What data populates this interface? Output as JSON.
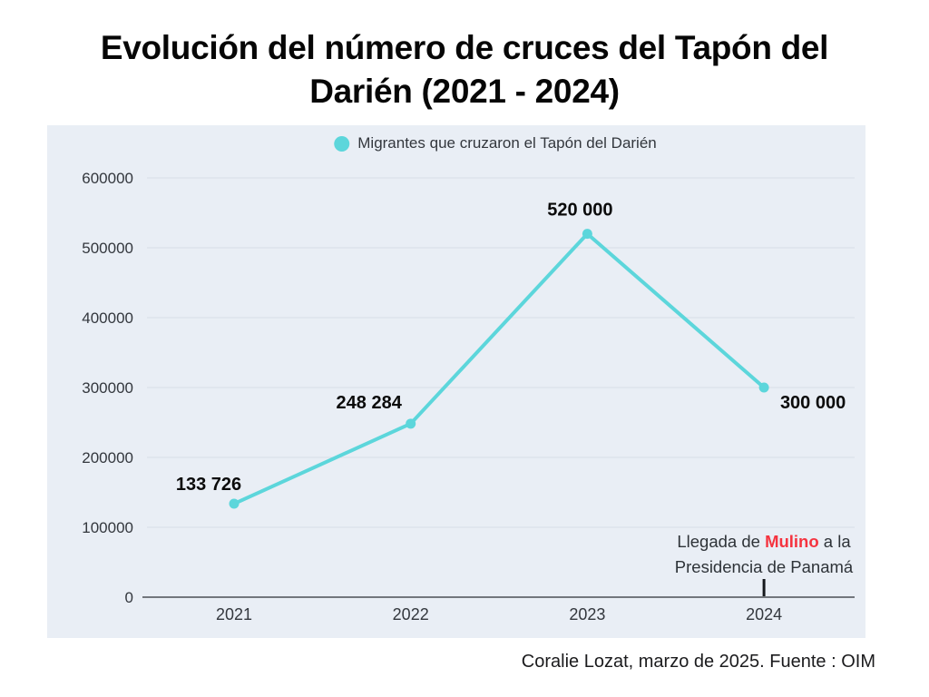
{
  "title": "Evolución del número de cruces del Tapón del Darién (2021 - 2024)",
  "legend": {
    "label": "Migrantes que cruzaron el Tapón del Darién"
  },
  "annotation": {
    "pre": "Llegada de ",
    "highlight": "Mulino",
    "post": " a la",
    "line2": "Presidencia de Panamá"
  },
  "footer": {
    "credit": "Coralie Lozat, marzo de 2025. Fuente : OIM"
  },
  "colors": {
    "series": "#5cd6db",
    "panel_bg": "#e9eef5",
    "grid": "#d8dee7",
    "axis": "#4a4f55",
    "annotation_tick": "#15181c",
    "highlight_red": "#f5333f",
    "tick_text": "#33373d",
    "title_text": "#060606"
  },
  "chart_data": {
    "type": "line",
    "title": "Evolución del número de cruces del Tapón del Darién (2021 - 2024)",
    "categories": [
      "2021",
      "2022",
      "2023",
      "2024"
    ],
    "series": [
      {
        "name": "Migrantes que cruzaron el Tapón del Darién",
        "values": [
          133726,
          248284,
          520000,
          300000
        ]
      }
    ],
    "point_labels": [
      "133 726",
      "248 284",
      "520 000",
      "300 000"
    ],
    "xlabel": "",
    "ylabel": "",
    "ylim": [
      0,
      600000
    ],
    "y_ticks": [
      0,
      100000,
      200000,
      300000,
      400000,
      500000,
      600000
    ],
    "grid": true,
    "legend_position": "top-center",
    "annotation_x": "2024",
    "source": "Coralie Lozat, marzo de 2025. Fuente : OIM"
  }
}
